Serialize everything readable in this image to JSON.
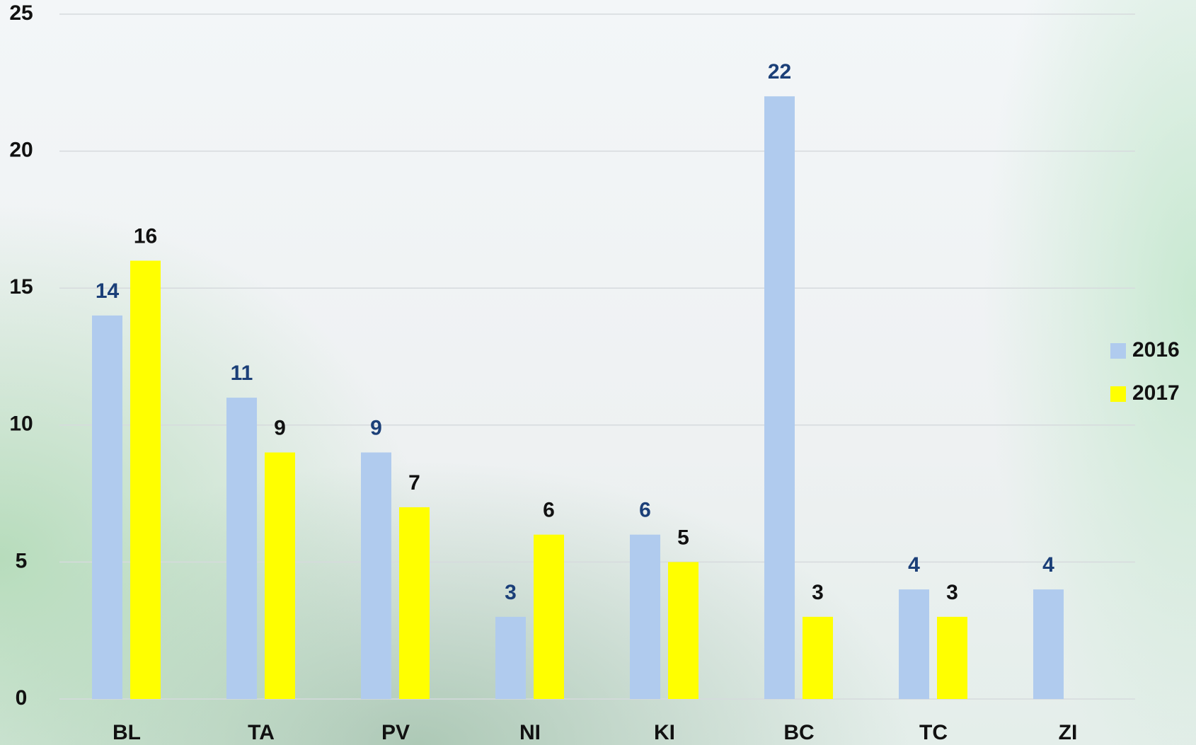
{
  "chart_data": {
    "type": "bar",
    "categories": [
      "BL",
      "TA",
      "PV",
      "NI",
      "KI",
      "BC",
      "TC",
      "ZI"
    ],
    "series": [
      {
        "name": "2016",
        "color": "#b0cbee",
        "label_color": "#1b3f78",
        "values": [
          14,
          11,
          9,
          3,
          6,
          22,
          4,
          4
        ]
      },
      {
        "name": "2017",
        "color": "#ffff00",
        "label_color": "#111111",
        "values": [
          16,
          9,
          7,
          6,
          5,
          3,
          3,
          null
        ]
      }
    ],
    "ylim": [
      0,
      25
    ],
    "yticks": [
      0,
      5,
      10,
      15,
      20,
      25
    ],
    "grid": true,
    "legend": "right"
  }
}
